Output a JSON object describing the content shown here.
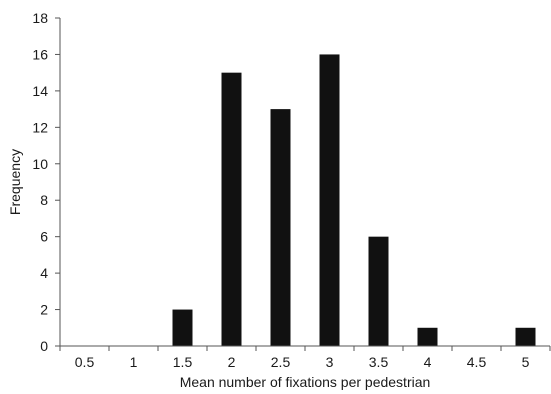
{
  "chart_data": {
    "type": "bar",
    "categories": [
      "0.5",
      "1",
      "1.5",
      "2",
      "2.5",
      "3",
      "3.5",
      "4",
      "4.5",
      "5"
    ],
    "values": [
      0,
      0,
      2,
      15,
      13,
      16,
      6,
      1,
      0,
      1
    ],
    "title": "",
    "xlabel": "Mean number of fixations per pedestrian",
    "ylabel": "Frequency",
    "ylim": [
      0,
      18
    ],
    "yticks": [
      0,
      2,
      4,
      6,
      8,
      10,
      12,
      14,
      16,
      18
    ],
    "grid": false,
    "bar_color": "#111111",
    "axis_color": "#555555"
  }
}
